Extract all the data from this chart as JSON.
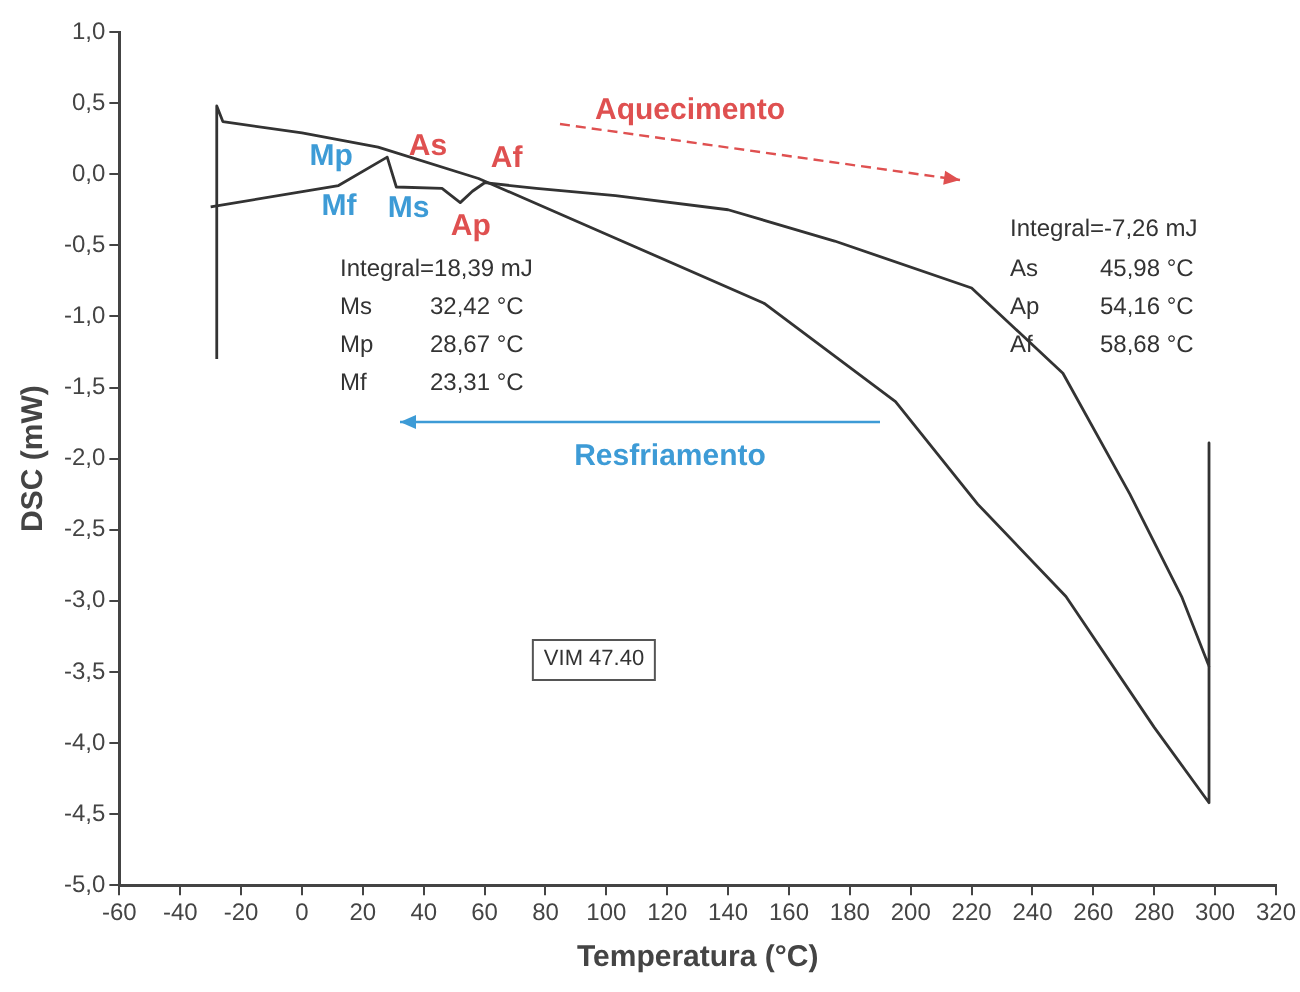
{
  "chart_data": {
    "type": "line",
    "xlabel": "Temperatura (°C)",
    "ylabel": "DSC (mW)",
    "xlim": [
      -60,
      320
    ],
    "xticks": [
      -60,
      -40,
      -20,
      0,
      20,
      40,
      60,
      80,
      100,
      120,
      140,
      160,
      180,
      200,
      220,
      240,
      260,
      280,
      300,
      320
    ],
    "ylim": [
      -5,
      1
    ],
    "yticks": [
      {
        "value": -5,
        "label": "-5,0"
      },
      {
        "value": -4.5,
        "label": "-4,5"
      },
      {
        "value": -4,
        "label": "-4,0"
      },
      {
        "value": -3.5,
        "label": "-3,5"
      },
      {
        "value": -3,
        "label": "-3,0"
      },
      {
        "value": -2.5,
        "label": "-2,5"
      },
      {
        "value": -2,
        "label": "-2,0"
      },
      {
        "value": -1.5,
        "label": "-1,5"
      },
      {
        "value": -1,
        "label": "-1,0"
      },
      {
        "value": -0.5,
        "label": "-0,5"
      },
      {
        "value": 0,
        "label": "0,0"
      },
      {
        "value": 0.5,
        "label": "0,5"
      },
      {
        "value": 1,
        "label": "1,0"
      }
    ],
    "grid": false,
    "legend": false,
    "marker": "none",
    "line_style": "solid",
    "series": [
      {
        "color": "#333333",
        "x": [
          -28,
          -28,
          -26,
          0,
          25,
          58,
          103,
          152,
          195,
          222,
          251,
          280,
          298,
          298
        ],
        "values": [
          -1.3,
          0.48,
          0.37,
          0.29,
          0.19,
          -0.03,
          -0.45,
          -0.91,
          -1.6,
          -2.32,
          -2.97,
          -3.89,
          -4.42,
          -3.46
        ]
      },
      {
        "color": "#333333",
        "x": [
          298,
          298,
          289,
          272,
          250,
          220,
          175,
          140,
          103,
          77,
          60,
          56,
          52,
          46,
          31,
          28,
          12,
          -30
        ],
        "values": [
          -1.89,
          -3.46,
          -2.97,
          -2.25,
          -1.4,
          -0.8,
          -0.47,
          -0.25,
          -0.15,
          -0.1,
          -0.06,
          -0.12,
          -0.2,
          -0.1,
          -0.09,
          0.12,
          -0.08,
          -0.23
        ]
      }
    ],
    "annotations": [
      {
        "text": "Mp",
        "x": 28.67,
        "y": 0.12
      },
      {
        "text": "Mf",
        "x": 23.31,
        "y": 0.06
      },
      {
        "text": "Ms",
        "x": 32.42,
        "y": -0.09
      },
      {
        "text": "As",
        "x": 45.98,
        "y": -0.1
      },
      {
        "text": "Ap",
        "x": 54.16,
        "y": -0.2
      },
      {
        "text": "Af",
        "x": 58.68,
        "y": -0.06
      },
      "Aquecimento",
      "Resfriamento",
      "Integral=-7,26 mJ",
      "As 45,98 °C",
      "Ap 54,16 °C",
      "Af 58,68 °C",
      "Integral=18,39 mJ",
      "Ms 32,42 °C",
      "Mp 28,67 °C",
      "Mf 23,31 °C",
      "VIM 47.40"
    ]
  }
}
